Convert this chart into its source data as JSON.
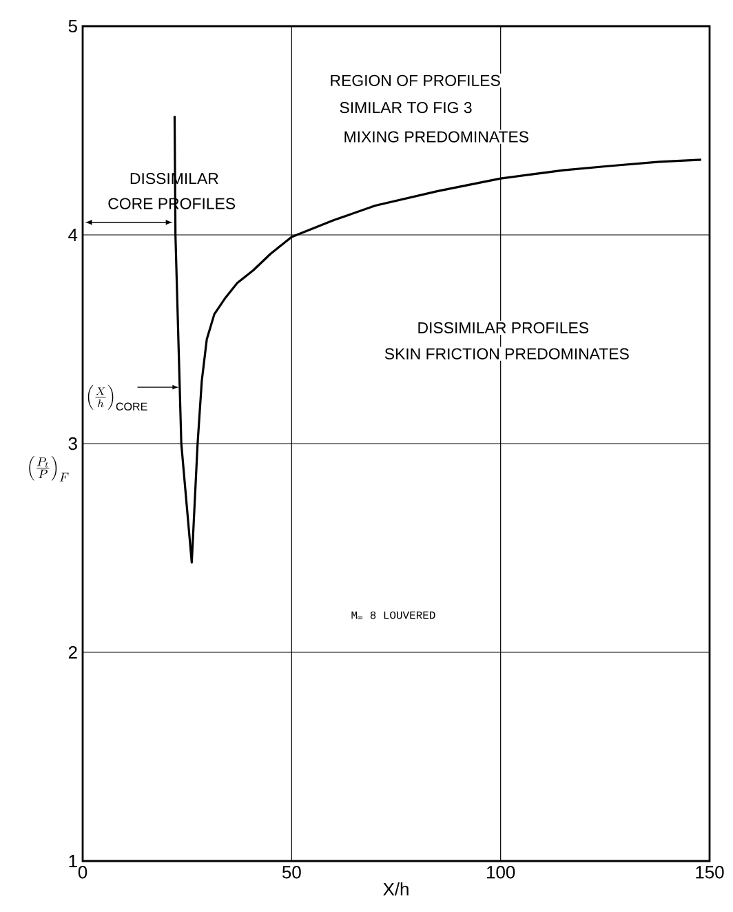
{
  "chart_data": {
    "type": "line",
    "xlabel": "X/h",
    "ylabel": "\\left(\\frac{P_t}{P}\\right)_F",
    "xlim": [
      0,
      150
    ],
    "ylim": [
      1,
      5
    ],
    "xticks": [
      0,
      50,
      100,
      150
    ],
    "yticks": [
      1,
      2,
      3,
      4,
      5
    ],
    "grid": true,
    "marker": "none",
    "line_style": "solid",
    "series": [
      {
        "color": "#000000",
        "x": [
          22,
          22.2,
          23.6,
          26.1,
          27.5,
          28.5,
          29.7,
          31.5,
          34.2,
          37,
          40.8,
          45,
          50,
          60,
          70,
          85,
          100,
          115,
          126,
          138,
          148
        ],
        "values": [
          4.57,
          4.0,
          3.0,
          2.43,
          3.0,
          3.3,
          3.5,
          3.62,
          3.7,
          3.77,
          3.83,
          3.91,
          3.99,
          4.07,
          4.14,
          4.21,
          4.27,
          4.31,
          4.33,
          4.35,
          4.36
        ]
      }
    ],
    "annotations": [
      "REGION OF PROFILES",
      "SIMILAR TO FIG 3",
      "MIXING PREDOMINATES",
      "DISSIMILAR",
      "CORE PROFILES",
      "DISSIMILAR PROFILES",
      "SKIN FRICTION PREDOMINATES",
      {
        "text": "\\left(\\frac{X}{h}\\right)_{\\mathrm{CORE}}",
        "x": 23,
        "y": 3.27
      },
      "M$_{∞}$  8 LOUVERED"
    ]
  }
}
